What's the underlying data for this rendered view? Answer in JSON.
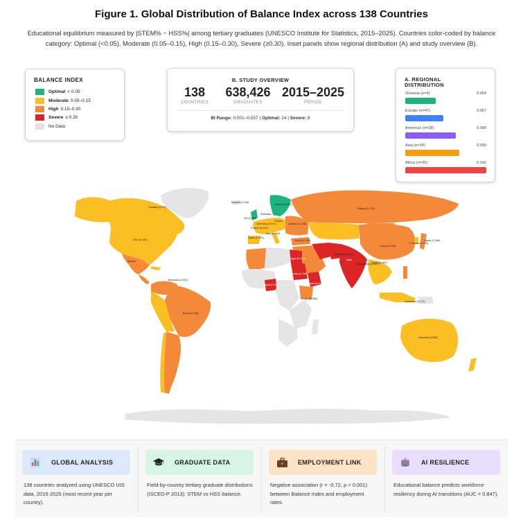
{
  "title": "Figure 1. Global Distribution of Balance Index across 138 Countries",
  "subtitle": "Educational equilibrium measured by |STEM% − HSS%| among tertiary graduates (UNESCO Institute for Statistics, 2015–2025). Countries color-coded by balance category: Optimal (<0.05), Moderate (0.05–0.15), High (0.15–0.30), Severe (≥0.30). Inset panels show regional distribution (A) and study overview (B).",
  "colors": {
    "optimal": "#1db57f",
    "moderate": "#fbbf24",
    "high": "#f5893a",
    "severe": "#dc2626",
    "nodata": "#e5e5e5",
    "ocean": "#ffffff"
  },
  "legend": {
    "title": "BALANCE INDEX",
    "items": [
      {
        "label": "Optimal",
        "range": "< 0.05",
        "color": "#1db57f"
      },
      {
        "label": "Moderate",
        "range": "0.05–0.15",
        "color": "#fbbf24"
      },
      {
        "label": "High",
        "range": "0.15–0.30",
        "color": "#f5893a"
      },
      {
        "label": "Severe",
        "range": "≥ 0.30",
        "color": "#dc2626"
      },
      {
        "label": "",
        "range": "No Data",
        "color": "#e2e2e2"
      }
    ]
  },
  "overview": {
    "title": "B. STUDY OVERVIEW",
    "stats": [
      {
        "value": "138",
        "label": "COUNTRIES"
      },
      {
        "value": "638,426",
        "label": "GRADUATES"
      },
      {
        "value": "2015–2025",
        "label": "PERIOD"
      }
    ],
    "footer_prefix": "BI Range:",
    "footer_range": "0.001–0.557",
    "footer_optimal_label": "Optimal:",
    "footer_optimal": "24",
    "footer_severe_label": "Severe:",
    "footer_severe": "8"
  },
  "regional": {
    "title_line1": "A. REGIONAL",
    "title_line2": "DISTRIBUTION",
    "axis_max": 0.142,
    "regions": [
      {
        "name": "Oceania (n=4)",
        "value": 0.054,
        "label": "0.054",
        "color": "#1db57f"
      },
      {
        "name": "Europe (n=47)",
        "value": 0.067,
        "label": "0.067",
        "color": "#3b82f6"
      },
      {
        "name": "Americas (n=18)",
        "value": 0.089,
        "label": "0.089",
        "color": "#8b5cf6"
      },
      {
        "name": "Asia (n=34)",
        "value": 0.095,
        "label": "0.095",
        "color": "#f59e0b"
      },
      {
        "name": "Africa (n=35)",
        "value": 0.142,
        "label": "0.142",
        "color": "#ef4444"
      }
    ]
  },
  "map_labels": [
    {
      "name": "Canada (0.172)"
    },
    {
      "name": "USA (0.131)"
    },
    {
      "name": "Mexico"
    },
    {
      "name": "Brazil (0.155)"
    },
    {
      "name": "Bermuda (0.001)"
    },
    {
      "name": "Iceland (0.018)"
    },
    {
      "name": "Finland (0.022)"
    },
    {
      "name": "Russia (0.173)"
    },
    {
      "name": "Denmark"
    },
    {
      "name": "UK (0.049)"
    },
    {
      "name": "Germany (0.071)"
    },
    {
      "name": "Poland"
    },
    {
      "name": "France (0.047)"
    },
    {
      "name": "Spain (0.101)"
    },
    {
      "name": "Italy (0.093)"
    },
    {
      "name": "Ukraine (0.135)"
    },
    {
      "name": "Turkey (0.105)"
    },
    {
      "name": "China (0.248)"
    },
    {
      "name": "S. Korea (0.105)"
    },
    {
      "name": "Japan (0.186)"
    },
    {
      "name": "Pakistan (0.474)"
    },
    {
      "name": "India"
    },
    {
      "name": "Bangladesh (0.447)"
    },
    {
      "name": "Nepal (0.387)"
    },
    {
      "name": "Egypt (0.321)"
    },
    {
      "name": "Sudan (0.390)"
    },
    {
      "name": "Ethiopia (0.412)"
    },
    {
      "name": "Nigeria (0.367)"
    },
    {
      "name": "Kenya (0.285)"
    },
    {
      "name": "Indonesia (0.172)"
    },
    {
      "name": "Australia (0.080)"
    }
  ],
  "bottom": [
    {
      "title": "GLOBAL ANALYSIS",
      "icon": "bar-chart-icon",
      "desc": "138 countries analyzed using UNESCO UIS data, 2015-2025 (most recent year per country).",
      "bg": "#dce9fb"
    },
    {
      "title": "GRADUATE DATA",
      "icon": "graduation-cap-icon",
      "desc": "Field-by-country tertiary graduate distributions (ISCED-P 2013): STEM vs HSS balance.",
      "bg": "#d6f5e3"
    },
    {
      "title": "EMPLOYMENT LINK",
      "icon": "briefcase-icon",
      "desc": "Negative association (r = -0.72, p < 0.001) between Balance Index and employment rates.",
      "bg": "#fde3c6"
    },
    {
      "title": "AI RESILIENCE",
      "icon": "robot-icon",
      "desc": "Educational balance predicts workforce resiliency during AI transitions (AUC = 0.847).",
      "bg": "#eadcfb"
    }
  ]
}
